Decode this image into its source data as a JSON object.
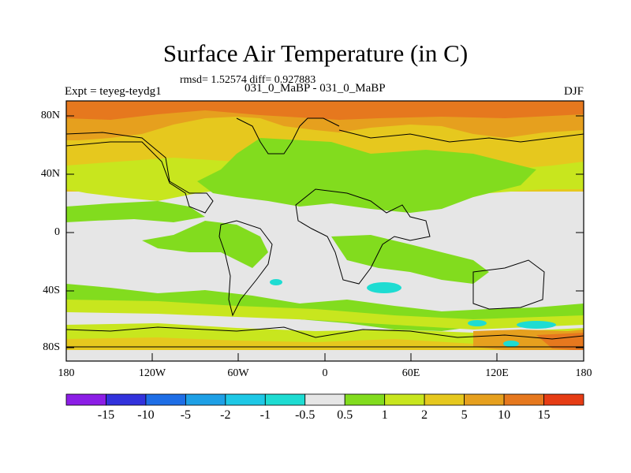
{
  "title": "Surface Air Temperature (in C)",
  "stats": "rmsd= 1.52574 diff= 0.927883",
  "expt": "Expt = teyeg-teydg1",
  "comparison": "031_0_MaBP - 031_0_MaBP",
  "season": "DJF",
  "map": {
    "y_ticks": [
      "80N",
      "40N",
      "0",
      "40S",
      "80S"
    ],
    "x_ticks": [
      "180",
      "120W",
      "60W",
      "0",
      "60E",
      "120E",
      "180"
    ]
  },
  "colorbar": {
    "labels": [
      "-15",
      "-10",
      "-5",
      "-2",
      "-1",
      "-0.5",
      "0.5",
      "1",
      "2",
      "5",
      "10",
      "15"
    ],
    "colors": [
      "#8c1ee6",
      "#3232dc",
      "#1e6ee6",
      "#1ea0e6",
      "#1ec8e6",
      "#1edcd2",
      "#e6e6e6",
      "#82dc1e",
      "#c8e61e",
      "#e6c81e",
      "#e6a01e",
      "#e6781e",
      "#e63c14"
    ]
  }
}
